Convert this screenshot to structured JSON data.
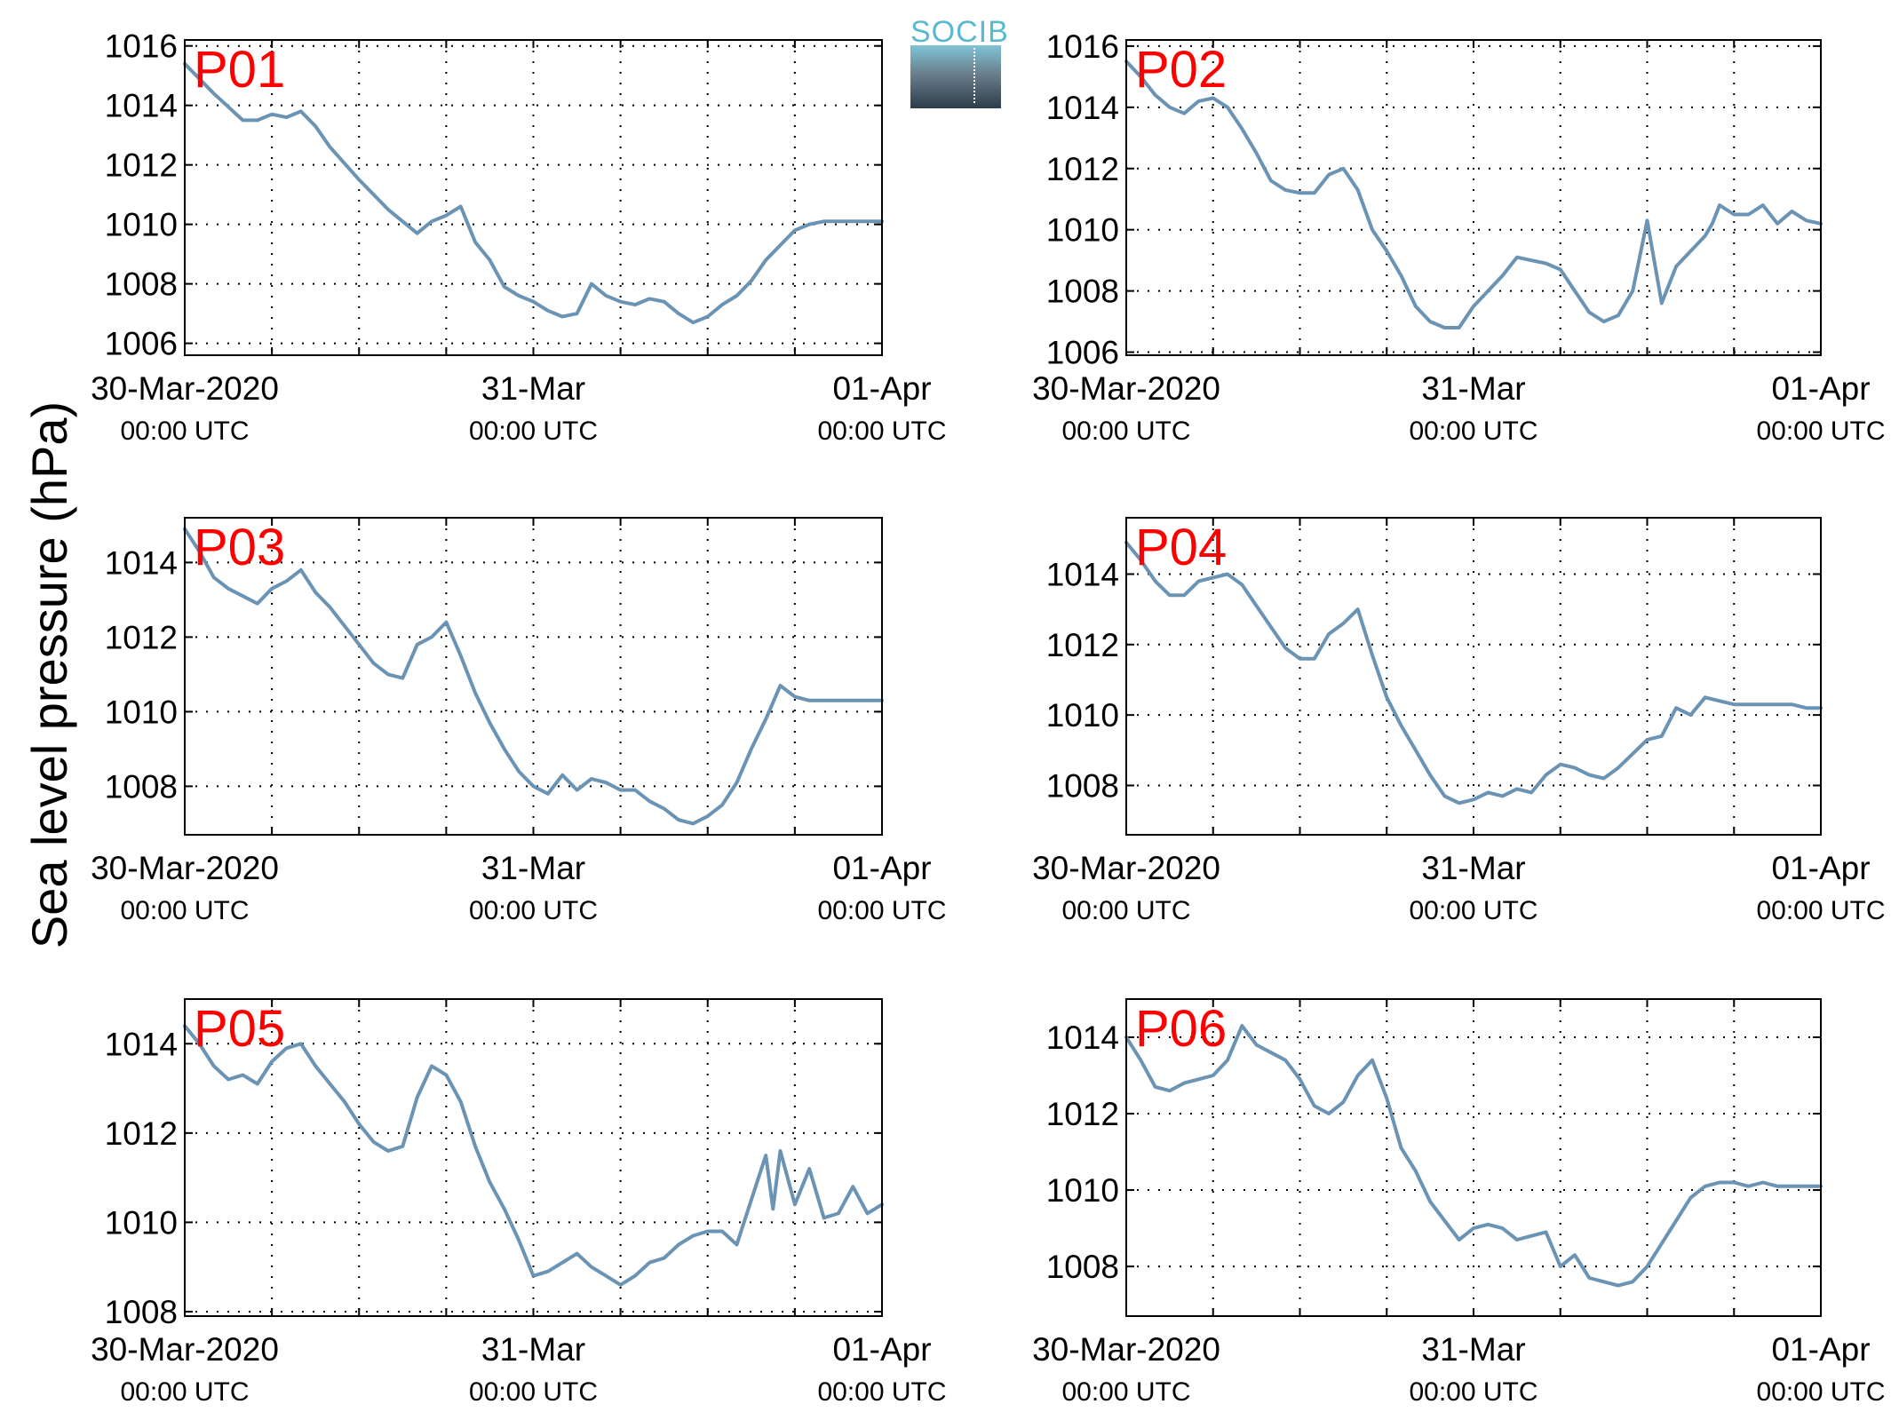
{
  "y_axis_label": "Sea level pressure (hPa)",
  "logo": {
    "text": "SOCIB",
    "colors": {
      "text": "#5ab8cf",
      "top": "#7ec4d6",
      "bottom": "#2e3d4a"
    }
  },
  "colors": {
    "series": "#6b93b4",
    "panel_label": "#ff0000",
    "grid": "#000000"
  },
  "chart_data": [
    {
      "type": "line",
      "panel": "P01",
      "ylim": [
        1005.6,
        1016.2
      ],
      "yticks": [
        1006,
        1008,
        1010,
        1012,
        1014,
        1016
      ],
      "xlim": [
        0,
        48
      ],
      "x_unit": "hours since 30-Mar-2020 00:00 UTC",
      "xtick_labels": [
        {
          "x": 0,
          "line1": "30-Mar-2020",
          "line2": "00:00 UTC"
        },
        {
          "x": 24,
          "line1": "31-Mar",
          "line2": "00:00 UTC"
        },
        {
          "x": 48,
          "line1": "01-Apr",
          "line2": "00:00 UTC"
        }
      ],
      "x": [
        0,
        2,
        4,
        5,
        6,
        7,
        8,
        9,
        10,
        12,
        14,
        16,
        17,
        18,
        19,
        20,
        21,
        22,
        23,
        24,
        25,
        26,
        27,
        28,
        29,
        30,
        31,
        32,
        33,
        34,
        35,
        36,
        37,
        38,
        39,
        40,
        41,
        42,
        43,
        44,
        45,
        46,
        47,
        48
      ],
      "values": [
        1015.4,
        1014.4,
        1013.5,
        1013.5,
        1013.7,
        1013.6,
        1013.8,
        1013.3,
        1012.6,
        1011.5,
        1010.5,
        1009.7,
        1010.1,
        1010.3,
        1010.6,
        1009.4,
        1008.8,
        1007.9,
        1007.6,
        1007.4,
        1007.1,
        1006.9,
        1007.0,
        1008.0,
        1007.6,
        1007.4,
        1007.3,
        1007.5,
        1007.4,
        1007.0,
        1006.7,
        1006.9,
        1007.3,
        1007.6,
        1008.1,
        1008.8,
        1009.3,
        1009.8,
        1010.0,
        1010.1,
        1010.1,
        1010.1,
        1010.1,
        1010.1
      ]
    },
    {
      "type": "line",
      "panel": "P02",
      "ylim": [
        1005.9,
        1016.2
      ],
      "yticks": [
        1006,
        1008,
        1010,
        1012,
        1014,
        1016
      ],
      "xlim": [
        0,
        48
      ],
      "x_unit": "hours since 30-Mar-2020 00:00 UTC",
      "xtick_labels": [
        {
          "x": 0,
          "line1": "30-Mar-2020",
          "line2": "00:00 UTC"
        },
        {
          "x": 24,
          "line1": "31-Mar",
          "line2": "00:00 UTC"
        },
        {
          "x": 48,
          "line1": "01-Apr",
          "line2": "00:00 UTC"
        }
      ],
      "x": [
        0,
        1,
        2,
        3,
        4,
        5,
        6,
        7,
        8,
        9,
        10,
        11,
        12,
        13,
        14,
        15,
        16,
        17,
        18,
        19,
        20,
        21,
        22,
        23,
        24,
        25,
        26,
        27,
        28,
        29,
        30,
        31,
        32,
        33,
        34,
        35,
        36,
        37,
        38,
        39,
        40,
        40.5,
        41,
        42,
        43,
        44,
        45,
        46,
        47,
        48
      ],
      "values": [
        1015.5,
        1015.0,
        1014.4,
        1014.0,
        1013.8,
        1014.2,
        1014.3,
        1014.0,
        1013.3,
        1012.5,
        1011.6,
        1011.3,
        1011.2,
        1011.2,
        1011.8,
        1012.0,
        1011.3,
        1010.0,
        1009.3,
        1008.5,
        1007.5,
        1007.0,
        1006.8,
        1006.8,
        1007.5,
        1008.0,
        1008.5,
        1009.1,
        1009.0,
        1008.9,
        1008.7,
        1008.0,
        1007.3,
        1007.0,
        1007.2,
        1008.0,
        1010.3,
        1007.6,
        1008.8,
        1009.3,
        1009.8,
        1010.2,
        1010.8,
        1010.5,
        1010.5,
        1010.8,
        1010.2,
        1010.6,
        1010.3,
        1010.2
      ]
    },
    {
      "type": "line",
      "panel": "P03",
      "ylim": [
        1006.7,
        1015.2
      ],
      "yticks": [
        1008,
        1010,
        1012,
        1014
      ],
      "xlim": [
        0,
        48
      ],
      "x_unit": "hours since 30-Mar-2020 00:00 UTC",
      "xtick_labels": [
        {
          "x": 0,
          "line1": "30-Mar-2020",
          "line2": "00:00 UTC"
        },
        {
          "x": 24,
          "line1": "31-Mar",
          "line2": "00:00 UTC"
        },
        {
          "x": 48,
          "line1": "01-Apr",
          "line2": "00:00 UTC"
        }
      ],
      "x": [
        0,
        1,
        2,
        3,
        4,
        5,
        6,
        7,
        8,
        9,
        10,
        11,
        12,
        13,
        14,
        15,
        16,
        17,
        18,
        19,
        20,
        21,
        22,
        23,
        24,
        25,
        26,
        27,
        28,
        29,
        30,
        31,
        32,
        33,
        34,
        35,
        36,
        37,
        38,
        39,
        40,
        41,
        42,
        43,
        44,
        45,
        46,
        47,
        48
      ],
      "values": [
        1014.9,
        1014.3,
        1013.6,
        1013.3,
        1013.1,
        1012.9,
        1013.3,
        1013.5,
        1013.8,
        1013.2,
        1012.8,
        1012.3,
        1011.8,
        1011.3,
        1011.0,
        1010.9,
        1011.8,
        1012.0,
        1012.4,
        1011.5,
        1010.5,
        1009.7,
        1009.0,
        1008.4,
        1008.0,
        1007.8,
        1008.3,
        1007.9,
        1008.2,
        1008.1,
        1007.9,
        1007.9,
        1007.6,
        1007.4,
        1007.1,
        1007.0,
        1007.2,
        1007.5,
        1008.1,
        1009.0,
        1009.8,
        1010.7,
        1010.4,
        1010.3,
        1010.3,
        1010.3,
        1010.3,
        1010.3,
        1010.3
      ]
    },
    {
      "type": "line",
      "panel": "P04",
      "ylim": [
        1006.6,
        1015.6
      ],
      "yticks": [
        1008,
        1010,
        1012,
        1014
      ],
      "xlim": [
        0,
        48
      ],
      "x_unit": "hours since 30-Mar-2020 00:00 UTC",
      "xtick_labels": [
        {
          "x": 0,
          "line1": "30-Mar-2020",
          "line2": "00:00 UTC"
        },
        {
          "x": 24,
          "line1": "31-Mar",
          "line2": "00:00 UTC"
        },
        {
          "x": 48,
          "line1": "01-Apr",
          "line2": "00:00 UTC"
        }
      ],
      "x": [
        0,
        1,
        2,
        3,
        4,
        5,
        6,
        7,
        8,
        9,
        10,
        11,
        12,
        13,
        14,
        15,
        16,
        17,
        18,
        19,
        20,
        21,
        22,
        23,
        24,
        25,
        26,
        27,
        28,
        29,
        30,
        31,
        32,
        33,
        34,
        35,
        36,
        37,
        38,
        39,
        40,
        41,
        42,
        43,
        44,
        45,
        46,
        47,
        48
      ],
      "values": [
        1014.9,
        1014.4,
        1013.8,
        1013.4,
        1013.4,
        1013.8,
        1013.9,
        1014.0,
        1013.7,
        1013.1,
        1012.5,
        1011.9,
        1011.6,
        1011.6,
        1012.3,
        1012.6,
        1013.0,
        1011.7,
        1010.5,
        1009.7,
        1009.0,
        1008.3,
        1007.7,
        1007.5,
        1007.6,
        1007.8,
        1007.7,
        1007.9,
        1007.8,
        1008.3,
        1008.6,
        1008.5,
        1008.3,
        1008.2,
        1008.5,
        1008.9,
        1009.3,
        1009.4,
        1010.2,
        1010.0,
        1010.5,
        1010.4,
        1010.3,
        1010.3,
        1010.3,
        1010.3,
        1010.3,
        1010.2,
        1010.2
      ]
    },
    {
      "type": "line",
      "panel": "P05",
      "ylim": [
        1007.9,
        1015.0
      ],
      "yticks": [
        1008,
        1010,
        1012,
        1014
      ],
      "xlim": [
        0,
        48
      ],
      "x_unit": "hours since 30-Mar-2020 00:00 UTC",
      "xtick_labels": [
        {
          "x": 0,
          "line1": "30-Mar-2020",
          "line2": "00:00 UTC"
        },
        {
          "x": 24,
          "line1": "31-Mar",
          "line2": "00:00 UTC"
        },
        {
          "x": 48,
          "line1": "01-Apr",
          "line2": "00:00 UTC"
        }
      ],
      "x": [
        0,
        1,
        2,
        3,
        4,
        5,
        6,
        7,
        8,
        9,
        10,
        11,
        12,
        13,
        14,
        15,
        16,
        17,
        18,
        19,
        20,
        21,
        22,
        23,
        24,
        25,
        26,
        27,
        28,
        29,
        30,
        31,
        32,
        33,
        34,
        35,
        36,
        37,
        38,
        39,
        40,
        40.5,
        41,
        42,
        43,
        44,
        45,
        46,
        47,
        48
      ],
      "values": [
        1014.4,
        1014.0,
        1013.5,
        1013.2,
        1013.3,
        1013.1,
        1013.6,
        1013.9,
        1014.0,
        1013.5,
        1013.1,
        1012.7,
        1012.2,
        1011.8,
        1011.6,
        1011.7,
        1012.8,
        1013.5,
        1013.3,
        1012.7,
        1011.7,
        1010.9,
        1010.3,
        1009.6,
        1008.8,
        1008.9,
        1009.1,
        1009.3,
        1009.0,
        1008.8,
        1008.6,
        1008.8,
        1009.1,
        1009.2,
        1009.5,
        1009.7,
        1009.8,
        1009.8,
        1009.5,
        1010.5,
        1011.5,
        1010.3,
        1011.6,
        1010.4,
        1011.2,
        1010.1,
        1010.2,
        1010.8,
        1010.2,
        1010.4
      ]
    },
    {
      "type": "line",
      "panel": "P06",
      "ylim": [
        1006.7,
        1015.0
      ],
      "yticks": [
        1008,
        1010,
        1012,
        1014
      ],
      "xlim": [
        0,
        48
      ],
      "x_unit": "hours since 30-Mar-2020 00:00 UTC",
      "xtick_labels": [
        {
          "x": 0,
          "line1": "30-Mar-2020",
          "line2": "00:00 UTC"
        },
        {
          "x": 24,
          "line1": "31-Mar",
          "line2": "00:00 UTC"
        },
        {
          "x": 48,
          "line1": "01-Apr",
          "line2": "00:00 UTC"
        }
      ],
      "x": [
        0,
        1,
        2,
        3,
        4,
        5,
        6,
        7,
        8,
        9,
        10,
        11,
        12,
        13,
        14,
        15,
        16,
        17,
        18,
        19,
        20,
        21,
        22,
        23,
        24,
        25,
        26,
        27,
        28,
        29,
        30,
        31,
        32,
        33,
        34,
        35,
        36,
        37,
        38,
        39,
        40,
        41,
        42,
        43,
        44,
        45,
        46,
        47,
        48
      ],
      "values": [
        1014.0,
        1013.4,
        1012.7,
        1012.6,
        1012.8,
        1012.9,
        1013.0,
        1013.4,
        1014.3,
        1013.8,
        1013.6,
        1013.4,
        1012.9,
        1012.2,
        1012.0,
        1012.3,
        1013.0,
        1013.4,
        1012.4,
        1011.1,
        1010.5,
        1009.7,
        1009.2,
        1008.7,
        1009.0,
        1009.1,
        1009.0,
        1008.7,
        1008.8,
        1008.9,
        1008.0,
        1008.3,
        1007.7,
        1007.6,
        1007.5,
        1007.6,
        1008.0,
        1008.6,
        1009.2,
        1009.8,
        1010.1,
        1010.2,
        1010.2,
        1010.1,
        1010.2,
        1010.1,
        1010.1,
        1010.1,
        1010.1
      ]
    }
  ]
}
